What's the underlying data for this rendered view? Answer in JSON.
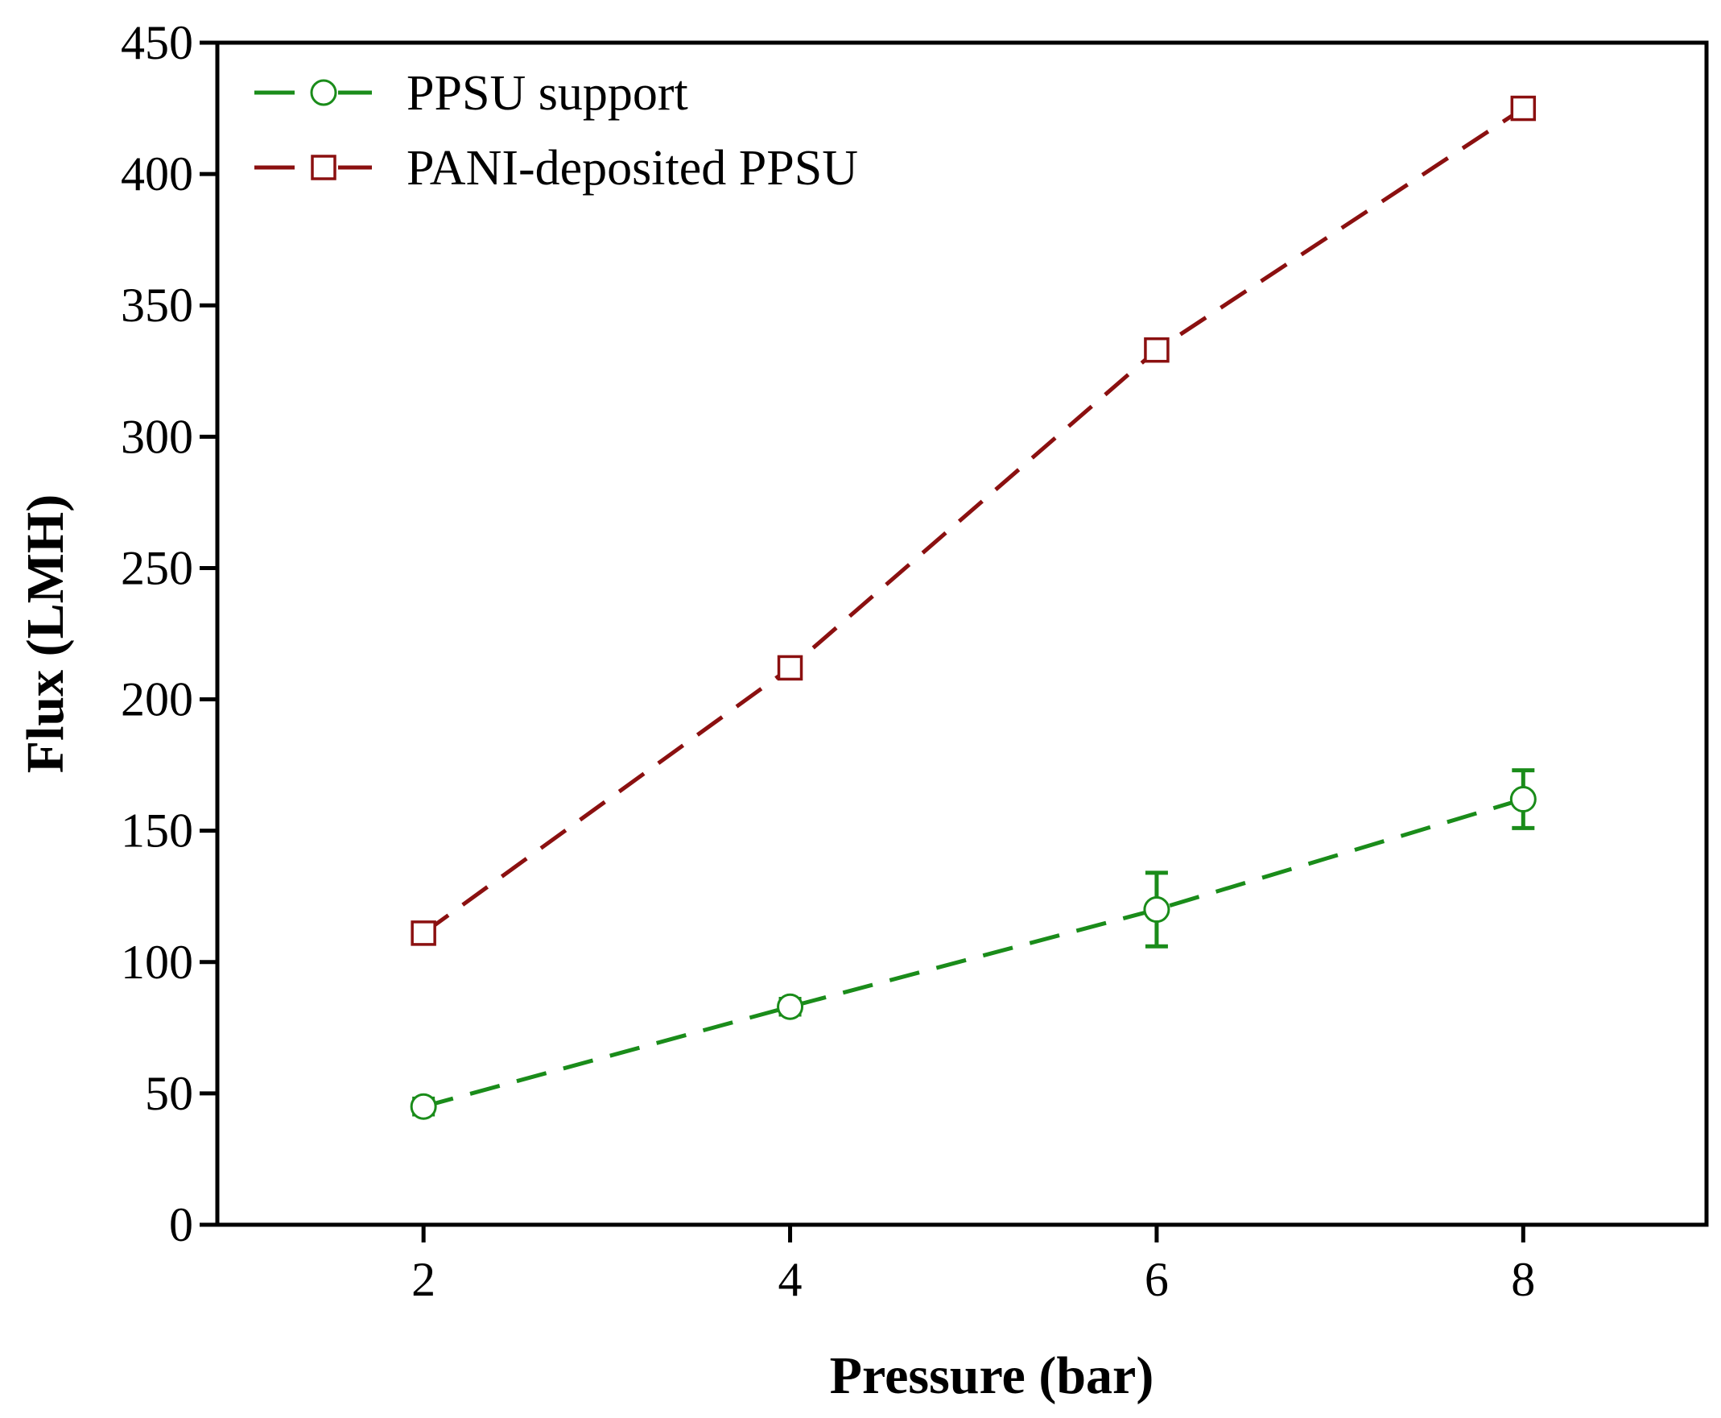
{
  "chart_data": {
    "type": "line",
    "title": "",
    "xlabel": "Pressure (bar)",
    "ylabel": "Flux (LMH)",
    "xlim": [
      0.875,
      9.0
    ],
    "ylim": [
      0,
      450
    ],
    "x_ticks": [
      2,
      4,
      6,
      8
    ],
    "y_ticks": [
      0,
      50,
      100,
      150,
      200,
      250,
      300,
      350,
      400,
      450
    ],
    "grid": false,
    "legend_position": "top-left",
    "series": [
      {
        "name": "PPSU support",
        "color": "#1a8c1a",
        "marker": "circle",
        "line_style": "dashed",
        "x": [
          2,
          4,
          6,
          8
        ],
        "y": [
          45,
          83,
          120,
          162
        ],
        "error": [
          3,
          3,
          14,
          11
        ]
      },
      {
        "name": "PANI-deposited PPSU",
        "color": "#8b1010",
        "marker": "square",
        "line_style": "dashed",
        "x": [
          2,
          4,
          6,
          8
        ],
        "y": [
          111,
          212,
          333,
          425
        ],
        "error": [
          3,
          3,
          3,
          3
        ]
      }
    ]
  }
}
